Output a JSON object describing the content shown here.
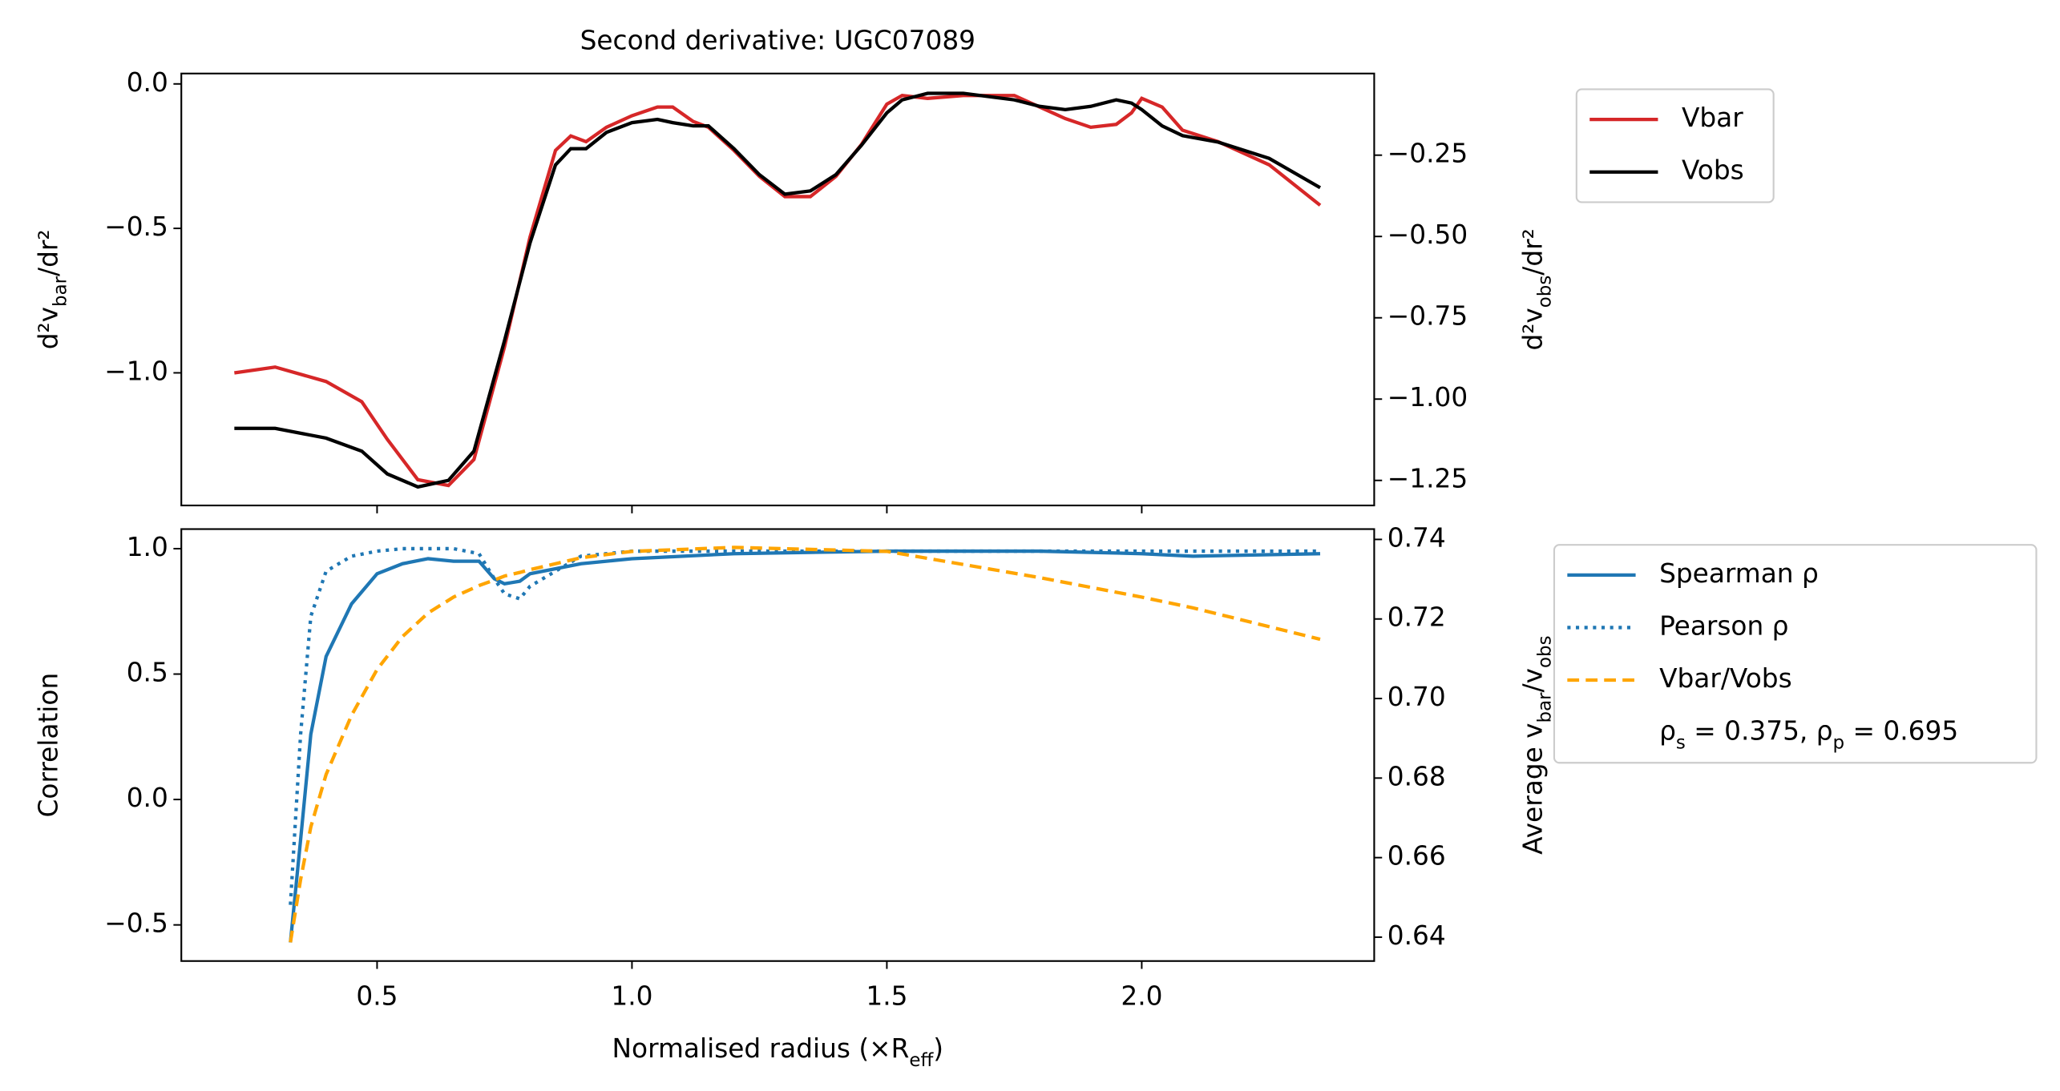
{
  "chart_data": [
    {
      "type": "line",
      "title": "Second derivative: UGC07089",
      "ylabel": [
        "d²v",
        "bar",
        "/dr²"
      ],
      "y2label": [
        "d²v",
        "obs",
        "/dr²"
      ],
      "ycolor": "#d62728",
      "y2color": "#000000",
      "xlim": [
        0.116,
        2.456
      ],
      "ylim": [
        -1.459,
        0.036
      ],
      "yticks": [
        {
          "value": 0,
          "label": "0.0"
        },
        {
          "value": -0.5,
          "label": "−0.5"
        },
        {
          "value": -1,
          "label": "−1.0"
        }
      ],
      "y2lim": [
        -1.327,
        0.001
      ],
      "y2ticks": [
        {
          "value": -0.25,
          "label": "−0.25"
        },
        {
          "value": -0.5,
          "label": "−0.50"
        },
        {
          "value": -0.75,
          "label": "−0.75"
        },
        {
          "value": -1,
          "label": "−1.00"
        },
        {
          "value": -1.25,
          "label": "−1.25"
        }
      ],
      "x": [
        0.22,
        0.3,
        0.4,
        0.47,
        0.52,
        0.58,
        0.64,
        0.69,
        0.75,
        0.8,
        0.85,
        0.88,
        0.91,
        0.95,
        1.0,
        1.05,
        1.08,
        1.12,
        1.15,
        1.2,
        1.25,
        1.3,
        1.35,
        1.4,
        1.45,
        1.5,
        1.53,
        1.58,
        1.65,
        1.75,
        1.8,
        1.85,
        1.9,
        1.95,
        1.98,
        2.0,
        2.04,
        2.08,
        2.15,
        2.25,
        2.35
      ],
      "series": [
        {
          "name": "Vbar",
          "color": "#d62728",
          "dash": "solid",
          "values": [
            -1.0,
            -0.98,
            -1.03,
            -1.1,
            -1.23,
            -1.37,
            -1.39,
            -1.3,
            -0.91,
            -0.53,
            -0.23,
            -0.18,
            -0.2,
            -0.15,
            -0.11,
            -0.08,
            -0.08,
            -0.13,
            -0.15,
            -0.23,
            -0.32,
            -0.39,
            -0.39,
            -0.32,
            -0.21,
            -0.07,
            -0.04,
            -0.05,
            -0.04,
            -0.04,
            -0.08,
            -0.12,
            -0.15,
            -0.14,
            -0.1,
            -0.05,
            -0.08,
            -0.16,
            -0.2,
            -0.28,
            -0.42
          ]
        },
        {
          "name": "Vobs",
          "color": "#000000",
          "dash": "solid",
          "axis": "y2",
          "values": [
            -1.09,
            -1.09,
            -1.12,
            -1.16,
            -1.23,
            -1.27,
            -1.25,
            -1.16,
            -0.82,
            -0.52,
            -0.28,
            -0.23,
            -0.23,
            -0.18,
            -0.15,
            -0.14,
            -0.15,
            -0.16,
            -0.16,
            -0.23,
            -0.31,
            -0.37,
            -0.36,
            -0.31,
            -0.22,
            -0.12,
            -0.08,
            -0.06,
            -0.06,
            -0.08,
            -0.1,
            -0.11,
            -0.1,
            -0.08,
            -0.09,
            -0.11,
            -0.16,
            -0.19,
            -0.21,
            -0.26,
            -0.35
          ]
        }
      ]
    },
    {
      "type": "line",
      "xlabel": [
        "Normalised radius (×R",
        "eff",
        ")"
      ],
      "ylabel": [
        "Correlation"
      ],
      "y2label": [
        "Average v",
        "bar",
        "/v",
        "obs"
      ],
      "ycolor": "#1f77b4",
      "y2color": "#ffa500",
      "xlim": [
        0.116,
        2.456
      ],
      "xticks": [
        0.5,
        {
          "value": 1,
          "label": "1.0"
        },
        1.5,
        {
          "value": 2,
          "label": "2.0"
        }
      ],
      "ylim": [
        -0.644,
        1.078
      ],
      "yticks": [
        {
          "value": 1,
          "label": "1.0"
        },
        0.5,
        {
          "value": 0,
          "label": "0.0"
        },
        {
          "value": -0.5,
          "label": "−0.5"
        }
      ],
      "y2lim": [
        0.634,
        0.7426
      ],
      "y2ticks": [
        0.74,
        0.72,
        {
          "value": 0.7,
          "label": "0.70"
        },
        0.68,
        0.66,
        0.64
      ],
      "x": [
        0.33,
        0.35,
        0.37,
        0.4,
        0.45,
        0.5,
        0.55,
        0.6,
        0.65,
        0.7,
        0.73,
        0.75,
        0.78,
        0.8,
        0.9,
        1.0,
        1.2,
        1.5,
        1.8,
        2.0,
        2.1,
        2.35
      ],
      "series": [
        {
          "name": "Spearman ρ",
          "color": "#1f77b4",
          "dash": "solid",
          "values": [
            -0.57,
            -0.16,
            0.26,
            0.57,
            0.78,
            0.9,
            0.94,
            0.96,
            0.95,
            0.95,
            0.88,
            0.86,
            0.87,
            0.9,
            0.94,
            0.96,
            0.98,
            0.99,
            0.99,
            0.98,
            0.97,
            0.98
          ]
        },
        {
          "name": "Pearson ρ",
          "color": "#1f77b4",
          "dash": "dotted",
          "values": [
            -0.42,
            0.26,
            0.73,
            0.91,
            0.97,
            0.99,
            1.0,
            1.0,
            1.0,
            0.98,
            0.88,
            0.82,
            0.8,
            0.85,
            0.97,
            0.99,
            0.99,
            0.99,
            0.99,
            0.99,
            0.99,
            0.99
          ]
        },
        {
          "name": "Vbar/Vobs",
          "color": "#ffa500",
          "dash": "dashed",
          "axis": "y2",
          "values": [
            0.6387,
            0.6545,
            0.6677,
            0.6809,
            0.6958,
            0.7073,
            0.7156,
            0.7215,
            0.7255,
            0.7284,
            0.7298,
            0.7308,
            0.7317,
            0.7324,
            0.7354,
            0.737,
            0.738,
            0.737,
            0.7304,
            0.7255,
            0.7228,
            0.7149
          ]
        }
      ],
      "legend_note": [
        "ρ",
        "s",
        " = 0.375, ρ",
        "p",
        " = 0.695"
      ]
    }
  ]
}
